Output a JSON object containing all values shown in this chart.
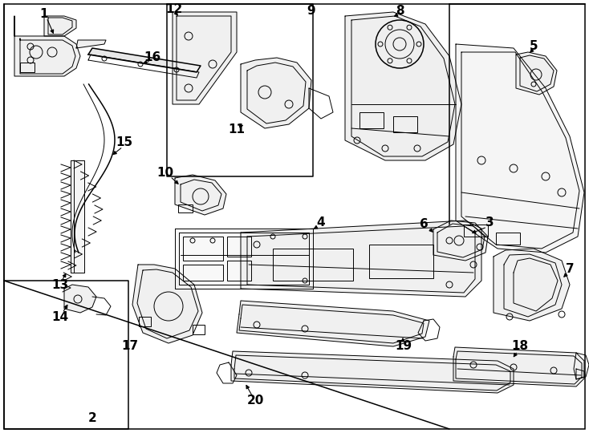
{
  "bg_color": "#ffffff",
  "line_color": "#000000",
  "label_color": "#000000",
  "fig_width": 7.34,
  "fig_height": 5.4,
  "dpi": 100,
  "lw_thin": 0.7,
  "lw_med": 1.1,
  "lw_thick": 1.6,
  "fontsize_label": 11,
  "fontsize_small": 9
}
